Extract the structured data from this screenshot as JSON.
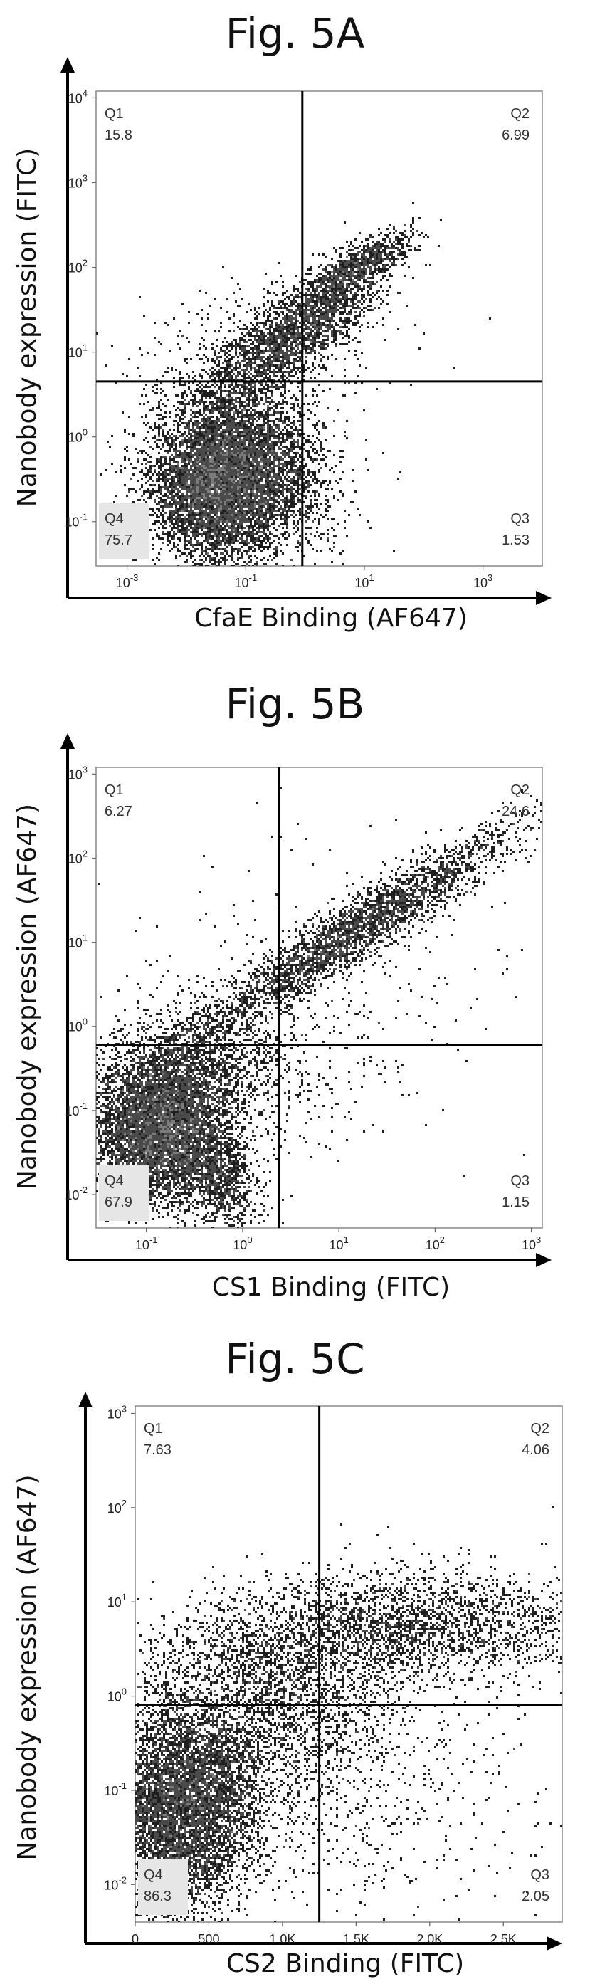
{
  "chart_data": [
    {
      "type": "scatter",
      "title": "Fig. 5A",
      "xlabel": "CfaE Binding (AF647)",
      "ylabel": "Nanobody expression (FITC)",
      "x_scale": "log",
      "y_scale": "log",
      "xlim": [
        0.0003,
        10000
      ],
      "ylim": [
        0.03,
        12000
      ],
      "x_ticks": [
        {
          "v": 0.001,
          "m": "10",
          "e": "-3"
        },
        {
          "v": 0.1,
          "m": "10",
          "e": "-1"
        },
        {
          "v": 10,
          "m": "10",
          "e": "1"
        },
        {
          "v": 1000,
          "m": "10",
          "e": "3"
        }
      ],
      "y_ticks": [
        {
          "v": 0.1,
          "m": "10",
          "e": "-1"
        },
        {
          "v": 1,
          "m": "10",
          "e": "0"
        },
        {
          "v": 10,
          "m": "10",
          "e": "1"
        },
        {
          "v": 100,
          "m": "10",
          "e": "2"
        },
        {
          "v": 1000,
          "m": "10",
          "e": "3"
        },
        {
          "v": 10000,
          "m": "10",
          "e": "4"
        }
      ],
      "gate": {
        "x": 0.9,
        "y": 4.5
      },
      "quadrants": [
        {
          "name": "Q1",
          "value": "15.8"
        },
        {
          "name": "Q2",
          "value": "6.99"
        },
        {
          "name": "Q3",
          "value": "1.53"
        },
        {
          "name": "Q4",
          "value": "75.7"
        }
      ],
      "grid": false
    },
    {
      "type": "scatter",
      "title": "Fig. 5B",
      "xlabel": "CS1 Binding (FITC)",
      "ylabel": "Nanobody expression (AF647)",
      "x_scale": "log",
      "y_scale": "log",
      "xlim": [
        0.03,
        1300
      ],
      "ylim": [
        0.004,
        1200
      ],
      "x_ticks": [
        {
          "v": 0.1,
          "m": "10",
          "e": "-1"
        },
        {
          "v": 1,
          "m": "10",
          "e": "0"
        },
        {
          "v": 10,
          "m": "10",
          "e": "1"
        },
        {
          "v": 100,
          "m": "10",
          "e": "2"
        },
        {
          "v": 1000,
          "m": "10",
          "e": "3"
        }
      ],
      "y_ticks": [
        {
          "v": 0.01,
          "m": "10",
          "e": "-2"
        },
        {
          "v": 0.1,
          "m": "10",
          "e": "-1"
        },
        {
          "v": 1,
          "m": "10",
          "e": "0"
        },
        {
          "v": 10,
          "m": "10",
          "e": "1"
        },
        {
          "v": 100,
          "m": "10",
          "e": "2"
        },
        {
          "v": 1000,
          "m": "10",
          "e": "3"
        }
      ],
      "gate": {
        "x": 2.4,
        "y": 0.6
      },
      "quadrants": [
        {
          "name": "Q1",
          "value": "6.27"
        },
        {
          "name": "Q2",
          "value": "24.6"
        },
        {
          "name": "Q3",
          "value": "1.15"
        },
        {
          "name": "Q4",
          "value": "67.9"
        }
      ],
      "grid": false
    },
    {
      "type": "scatter",
      "title": "Fig. 5C",
      "xlabel": "CS2 Binding (FITC)",
      "ylabel": "Nanobody expression (AF647)",
      "x_scale": "linear",
      "y_scale": "log",
      "xlim": [
        0,
        2900
      ],
      "ylim": [
        0.004,
        1200
      ],
      "x_ticks": [
        {
          "v": 0,
          "m": "0"
        },
        {
          "v": 500,
          "m": "500"
        },
        {
          "v": 1000,
          "m": "1.0K"
        },
        {
          "v": 1500,
          "m": "1.5K"
        },
        {
          "v": 2000,
          "m": "2.0K"
        },
        {
          "v": 2500,
          "m": "2.5K"
        }
      ],
      "y_ticks": [
        {
          "v": 0.01,
          "m": "10",
          "e": "-2"
        },
        {
          "v": 0.1,
          "m": "10",
          "e": "-1"
        },
        {
          "v": 1,
          "m": "10",
          "e": "0"
        },
        {
          "v": 10,
          "m": "10",
          "e": "1"
        },
        {
          "v": 100,
          "m": "10",
          "e": "2"
        },
        {
          "v": 1000,
          "m": "10",
          "e": "3"
        }
      ],
      "gate": {
        "x": 1250,
        "y": 0.8
      },
      "quadrants": [
        {
          "name": "Q1",
          "value": "7.63"
        },
        {
          "name": "Q2",
          "value": "4.06"
        },
        {
          "name": "Q3",
          "value": "2.05"
        },
        {
          "name": "Q4",
          "value": "86.3"
        }
      ],
      "grid": false
    }
  ]
}
